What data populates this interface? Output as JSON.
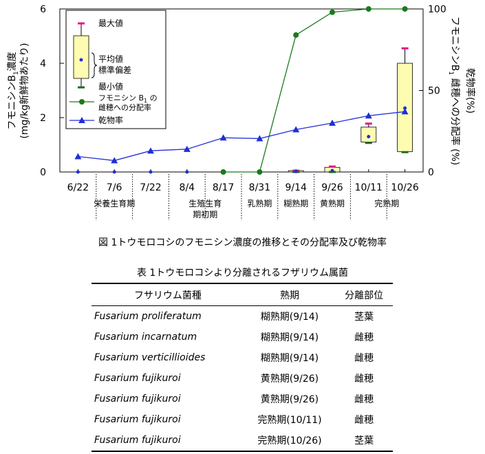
{
  "figure_caption": "図 1トウモロコシのフモニシン濃度の推移とその分配率及び乾物率",
  "table_caption": "表 1トウモロコシより分離されるフザリウム属菌",
  "chart_data": {
    "type": "box+line",
    "categories": [
      "6/22",
      "7/6",
      "7/22",
      "8/4",
      "8/17",
      "8/31",
      "9/14",
      "9/26",
      "10/11",
      "10/26"
    ],
    "left_axis": {
      "label_line1": "フモニシンB",
      "label_sub": "1",
      "label_line1_end": "濃度",
      "label_line2": "(mg/kg新鮮物あたり)",
      "range": [
        0,
        6
      ],
      "ticks": [
        "0",
        "2",
        "4",
        "6"
      ]
    },
    "right_axis": {
      "label_line1": "フモニシンB",
      "label_sub": "1",
      "label_line1_end": " 雌穂への分配率 (%)",
      "label_line2": "乾物率(%)",
      "range": [
        0,
        100
      ],
      "ticks": [
        "0",
        "50",
        "100"
      ]
    },
    "boxes": [
      {
        "category": "6/22",
        "mean": 0,
        "sd_low": 0,
        "sd_high": 0,
        "min": 0,
        "max": 0
      },
      {
        "category": "7/6",
        "mean": 0,
        "sd_low": 0,
        "sd_high": 0,
        "min": 0,
        "max": 0
      },
      {
        "category": "7/22",
        "mean": 0,
        "sd_low": 0,
        "sd_high": 0,
        "min": 0,
        "max": 0
      },
      {
        "category": "8/4",
        "mean": 0,
        "sd_low": 0,
        "sd_high": 0,
        "min": 0,
        "max": 0
      },
      {
        "category": "8/17",
        "mean": 0,
        "sd_low": 0,
        "sd_high": 0,
        "min": 0,
        "max": 0
      },
      {
        "category": "8/31",
        "mean": 0,
        "sd_low": 0,
        "sd_high": 0,
        "min": 0,
        "max": 0
      },
      {
        "category": "9/14",
        "mean": 0.02,
        "sd_low": 0.0,
        "sd_high": 0.05,
        "min": 0.0,
        "max": 0.05
      },
      {
        "category": "9/26",
        "mean": 0.05,
        "sd_low": 0.0,
        "sd_high": 0.17,
        "min": 0.0,
        "max": 0.2
      },
      {
        "category": "10/11",
        "mean": 1.3,
        "sd_low": 1.1,
        "sd_high": 1.65,
        "min": 1.07,
        "max": 1.78
      },
      {
        "category": "10/26",
        "mean": 2.35,
        "sd_low": 0.75,
        "sd_high": 4.0,
        "min": 0.73,
        "max": 4.55
      }
    ],
    "series": [
      {
        "name": "フモニシン B1 の雌穂への分配率",
        "axis": "right",
        "marker": "circle",
        "color": "#1a7a1a",
        "values": [
          null,
          null,
          null,
          null,
          0,
          0,
          84,
          98,
          100,
          100
        ]
      },
      {
        "name": "乾物率",
        "axis": "right",
        "marker": "triangle",
        "color": "#1f2fd6",
        "values": [
          9.5,
          7,
          13,
          14,
          21,
          20.5,
          26,
          30,
          34.5,
          37
        ]
      }
    ],
    "legend": {
      "max": "最大値",
      "mean_line1": "平均値",
      "mean_line2": "標準偏差",
      "min": "最小値",
      "distribution_line1": "フモニシン B",
      "distribution_sub": "1",
      "distribution_line1_end": " の",
      "distribution_line2": "雌穂への分配率",
      "drymatter": "乾物率"
    },
    "stages": [
      {
        "label_line1": "栄養生育期",
        "label_line2": "",
        "from": 0,
        "to": 2
      },
      {
        "label_line1": "生殖生育",
        "label_line2": "期初期",
        "from": 3,
        "to": 4
      },
      {
        "label_line1": "乳熟期",
        "label_line2": "",
        "from": 5,
        "to": 5
      },
      {
        "label_line1": "糊熟期",
        "label_line2": "",
        "from": 6,
        "to": 6
      },
      {
        "label_line1": "黄熟期",
        "label_line2": "",
        "from": 7,
        "to": 7
      },
      {
        "label_line1": "完熟期",
        "label_line2": "",
        "from": 8,
        "to": 9
      }
    ],
    "colors": {
      "box_fill": "#fefcb0",
      "max_marker": "#e5178a",
      "min_marker": "#1a6a1a",
      "mean_marker": "#1f2fd6"
    }
  },
  "table": {
    "headers": [
      "フサリウム菌種",
      "熟期",
      "分離部位"
    ],
    "rows": [
      [
        "Fusarium proliferatum",
        "糊熟期(9/14)",
        "茎葉"
      ],
      [
        "Fusarium incarnatum",
        "糊熟期(9/14)",
        "雌穂"
      ],
      [
        "Fusarium verticillioides",
        "糊熟期(9/14)",
        "雌穂"
      ],
      [
        "Fusarium fujikuroi",
        "黄熟期(9/26)",
        "雌穂"
      ],
      [
        "Fusarium fujikuroi",
        "黄熟期(9/26)",
        "雌穂"
      ],
      [
        "Fusarium fujikuroi",
        "完熟期(10/11)",
        "雌穂"
      ],
      [
        "Fusarium fujikuroi",
        "完熟期(10/26)",
        "茎葉"
      ]
    ]
  }
}
